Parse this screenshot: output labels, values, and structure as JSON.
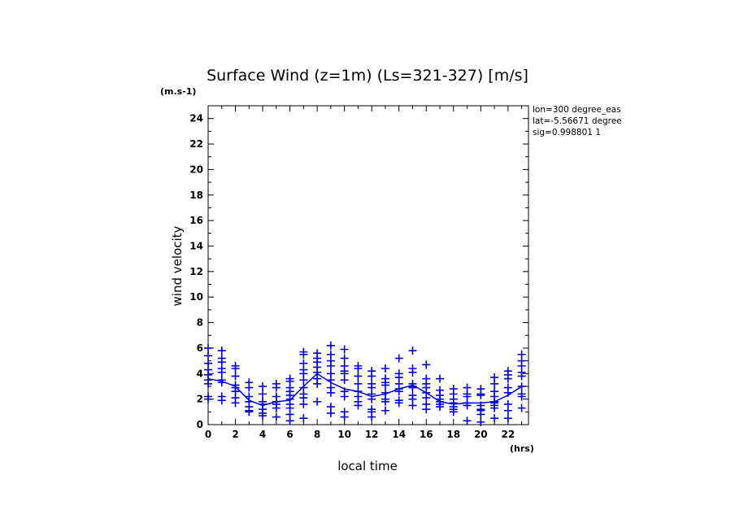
{
  "chart_data": {
    "type": "scatter",
    "title": "Surface Wind (z=1m) (Ls=321-327) [m/s]",
    "ylabel": "wind velocity",
    "xlabel": "local time",
    "y_unit": "(m.s-1)",
    "x_unit": "(hrs)",
    "xlim": [
      0,
      23.5
    ],
    "ylim": [
      0,
      25
    ],
    "x_ticks": [
      0,
      2,
      4,
      6,
      8,
      10,
      12,
      14,
      16,
      18,
      20,
      22
    ],
    "y_ticks": [
      0,
      2,
      4,
      6,
      8,
      10,
      12,
      14,
      16,
      18,
      20,
      22,
      24
    ],
    "grid": false,
    "info_lines": [
      "lon=300 degree_eas",
      "lat=-5.56671 degree",
      "sig=0.998801 1"
    ],
    "color": "#0000dd",
    "samples": [
      {
        "x": 0,
        "y": [
          6.0,
          5.4,
          4.8,
          4.3,
          3.9,
          3.5,
          3.2,
          2.2,
          2.0
        ]
      },
      {
        "x": 1,
        "y": [
          5.8,
          5.2,
          4.9,
          4.4,
          4.1,
          3.5,
          3.3,
          2.2,
          1.9
        ]
      },
      {
        "x": 2,
        "y": [
          4.6,
          4.4,
          3.8,
          3.1,
          2.9,
          2.6,
          2.1,
          1.7
        ]
      },
      {
        "x": 3,
        "y": [
          3.3,
          2.9,
          2.2,
          1.8,
          1.4,
          1.1,
          1.0
        ]
      },
      {
        "x": 4,
        "y": [
          3.0,
          2.4,
          1.8,
          1.6,
          1.2,
          0.9,
          0.7
        ]
      },
      {
        "x": 5,
        "y": [
          3.2,
          2.9,
          2.2,
          1.8,
          1.6,
          1.3,
          0.6
        ]
      },
      {
        "x": 6,
        "y": [
          3.6,
          3.4,
          2.9,
          2.6,
          2.3,
          2.0,
          1.6,
          1.3,
          0.8,
          0.3
        ]
      },
      {
        "x": 7,
        "y": [
          5.7,
          5.5,
          4.8,
          4.3,
          4.0,
          3.5,
          2.9,
          2.4,
          2.1,
          1.6,
          0.5
        ]
      },
      {
        "x": 8,
        "y": [
          5.6,
          5.2,
          4.9,
          4.5,
          4.1,
          3.6,
          3.2,
          1.8
        ]
      },
      {
        "x": 9,
        "y": [
          6.2,
          5.5,
          5.0,
          4.6,
          4.0,
          3.5,
          2.9,
          2.5,
          1.4,
          0.9
        ]
      },
      {
        "x": 10,
        "y": [
          5.9,
          5.2,
          4.6,
          4.2,
          4.0,
          3.5,
          2.6,
          2.2,
          1.0,
          0.6
        ]
      },
      {
        "x": 11,
        "y": [
          4.6,
          4.4,
          3.8,
          3.2,
          2.6,
          2.2,
          1.8,
          1.5
        ]
      },
      {
        "x": 12,
        "y": [
          4.2,
          3.8,
          3.2,
          2.9,
          2.4,
          2.0,
          1.2,
          1.0,
          0.6
        ]
      },
      {
        "x": 13,
        "y": [
          4.4,
          3.6,
          3.3,
          3.1,
          2.5,
          2.0,
          1.8,
          1.1
        ]
      },
      {
        "x": 14,
        "y": [
          5.2,
          4.0,
          3.7,
          3.2,
          2.8,
          2.6,
          1.9,
          1.7
        ]
      },
      {
        "x": 15,
        "y": [
          5.8,
          4.4,
          4.1,
          3.2,
          3.0,
          2.9,
          2.3,
          2.0,
          1.5
        ]
      },
      {
        "x": 16,
        "y": [
          4.7,
          3.6,
          3.2,
          2.9,
          2.5,
          2.1,
          1.6,
          1.2
        ]
      },
      {
        "x": 17,
        "y": [
          3.6,
          2.7,
          2.3,
          2.0,
          1.8,
          1.6,
          1.4
        ]
      },
      {
        "x": 18,
        "y": [
          2.8,
          2.4,
          2.0,
          1.7,
          1.4,
          1.2,
          1.0
        ]
      },
      {
        "x": 19,
        "y": [
          2.9,
          2.4,
          2.2,
          1.7,
          1.5,
          0.3
        ]
      },
      {
        "x": 20,
        "y": [
          2.8,
          2.4,
          2.3,
          1.5,
          1.2,
          1.1,
          0.8,
          0.2
        ]
      },
      {
        "x": 21,
        "y": [
          3.7,
          3.2,
          2.6,
          2.2,
          1.8,
          1.7,
          1.5,
          1.3,
          0.5
        ]
      },
      {
        "x": 22,
        "y": [
          4.2,
          3.9,
          3.6,
          2.9,
          2.5,
          1.6,
          1.1,
          0.5
        ]
      },
      {
        "x": 23,
        "y": [
          5.5,
          5.0,
          4.6,
          4.1,
          3.8,
          3.0,
          2.4,
          2.2,
          1.3
        ]
      }
    ],
    "mean_line": {
      "x": [
        0,
        1,
        2,
        3,
        4,
        5,
        6,
        7,
        8,
        9,
        10,
        11,
        12,
        13,
        14,
        15,
        16,
        17,
        18,
        19,
        20,
        21,
        22,
        23
      ],
      "y": [
        3.6,
        3.4,
        3.0,
        1.9,
        1.5,
        1.8,
        1.9,
        3.0,
        4.0,
        3.3,
        2.8,
        2.6,
        2.2,
        2.4,
        2.8,
        3.1,
        2.5,
        1.8,
        1.6,
        1.7,
        1.7,
        1.8,
        2.3,
        3.0
      ]
    }
  }
}
